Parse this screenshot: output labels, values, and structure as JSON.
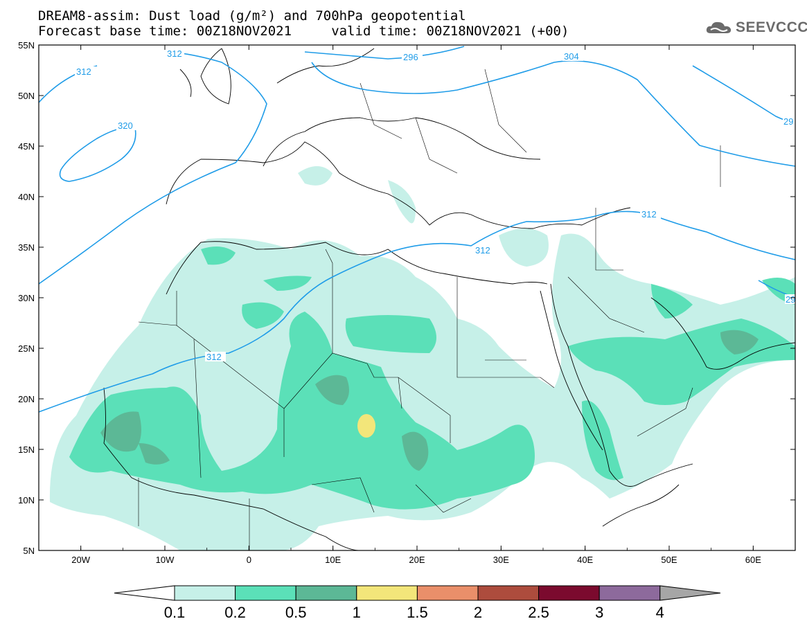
{
  "header": {
    "title_line1": "DREAM8-assim: Dust load (g/m²) and 700hPa geopotential",
    "title_line2": "Forecast base time: 00Z18NOV2021     valid time: 00Z18NOV2021 (+00)",
    "logo_text": "SEEVCCC",
    "logo_icon": "cloud-icon"
  },
  "axes": {
    "lat_labels": [
      "55N",
      "50N",
      "45N",
      "40N",
      "35N",
      "30N",
      "25N",
      "20N",
      "15N",
      "10N",
      "5N"
    ],
    "lon_labels": [
      "20W",
      "10W",
      "0",
      "10E",
      "20E",
      "30E",
      "40E",
      "50E",
      "60E"
    ]
  },
  "contour_labels": [
    {
      "id": "312-northwest",
      "text": "312"
    },
    {
      "id": "312-top",
      "text": "312"
    },
    {
      "id": "296",
      "text": "296"
    },
    {
      "id": "304",
      "text": "304"
    },
    {
      "id": "29-edge",
      "text": "29"
    },
    {
      "id": "320",
      "text": "320"
    },
    {
      "id": "312-east",
      "text": "312"
    },
    {
      "id": "312-med",
      "text": "312"
    },
    {
      "id": "312-sahara",
      "text": "312"
    },
    {
      "id": "29-right",
      "text": "29"
    }
  ],
  "colorbar": {
    "ticks": [
      "0.1",
      "0.2",
      "0.5",
      "1",
      "1.5",
      "2",
      "2.5",
      "3",
      "4"
    ],
    "colors": [
      "#c6f0e8",
      "#5be0b8",
      "#5cb896",
      "#f3e67a",
      "#ea8f6a",
      "#ad4c3d",
      "#7b0a2e",
      "#8d6a9c",
      "#a6a6a6"
    ],
    "low_extend_color": "#ffffff",
    "high_extend_color": "#a6a6a6"
  },
  "colors": {
    "contour": "#1f9ce8",
    "coastline": "#000000",
    "dust_lightest": "#c6f0e8",
    "dust_light": "#5be0b8",
    "dust_medium": "#5cb896",
    "dust_high": "#f3e67a"
  }
}
